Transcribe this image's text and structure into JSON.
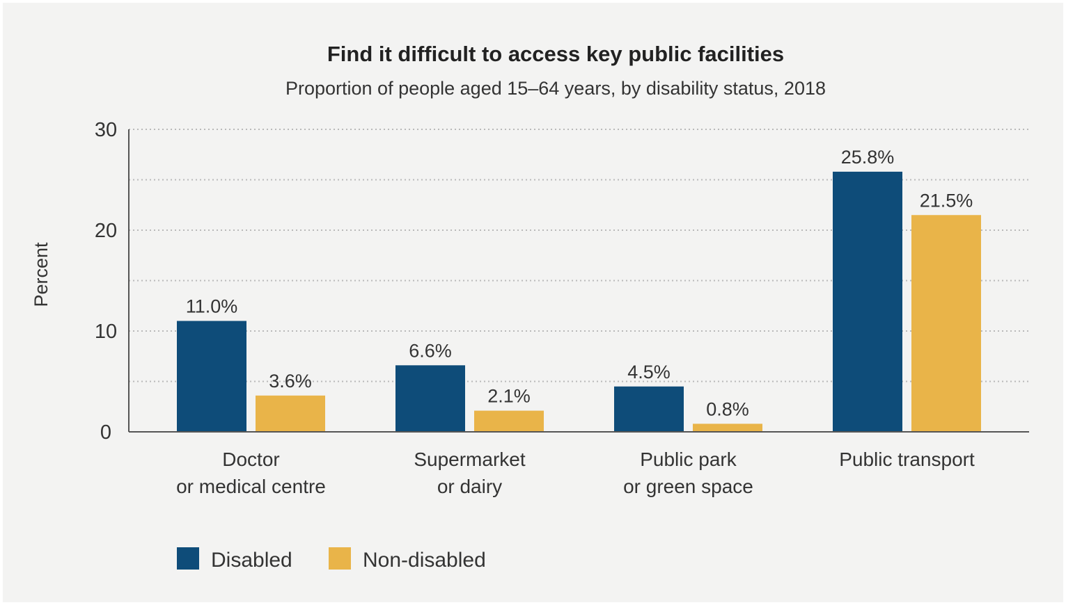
{
  "chart_data": {
    "type": "bar",
    "title": "Find it difficult to access key public facilities",
    "subtitle": "Proportion of people aged 15–64 years, by disability status, 2018",
    "ylabel": "Percent",
    "xlabel": "",
    "ylim": [
      0,
      30
    ],
    "yticks": [
      "0",
      "10",
      "20",
      "30"
    ],
    "grid": true,
    "legend_position": "bottom-left",
    "categories": [
      [
        "Doctor",
        "or medical centre"
      ],
      [
        "Supermarket",
        "or dairy"
      ],
      [
        "Public park",
        "or green space"
      ],
      [
        "Public transport"
      ]
    ],
    "series": [
      {
        "name": "Disabled",
        "color": "#0e4c79",
        "values": [
          11.0,
          6.6,
          4.5,
          25.8
        ],
        "labels": [
          "11.0%",
          "6.6%",
          "4.5%",
          "25.8%"
        ]
      },
      {
        "name": "Non-disabled",
        "color": "#e9b449",
        "values": [
          3.6,
          2.1,
          0.8,
          21.5
        ],
        "labels": [
          "3.6%",
          "2.1%",
          "0.8%",
          "21.5%"
        ]
      }
    ]
  }
}
